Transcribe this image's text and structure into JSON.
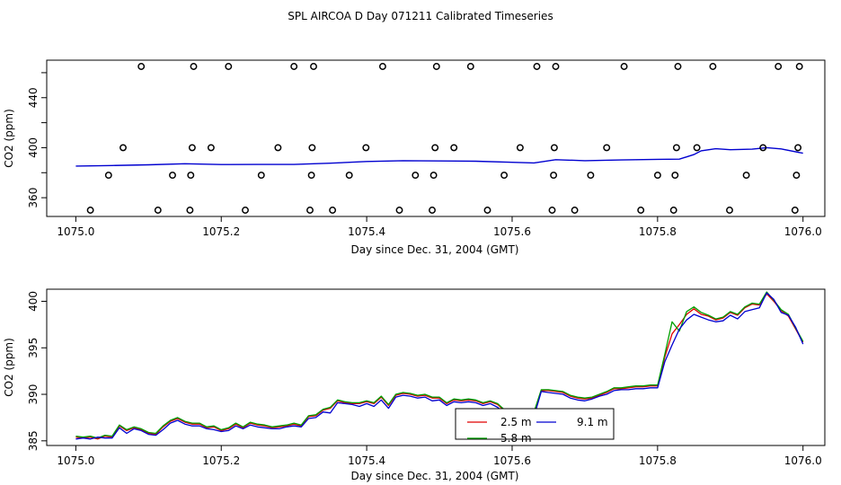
{
  "title": "SPL AIRCOA D  Day 071211  Calibrated Timeseries",
  "colors": {
    "frame": "#000000",
    "series_2_5m": "#e00000",
    "series_5_8m": "#00a000",
    "series_9_1m": "#0000d0",
    "markers": "#000000"
  },
  "chart_data": [
    {
      "type": "scatter",
      "title": "",
      "xlabel": "Day since Dec. 31, 2004 (GMT)",
      "ylabel": "CO2 (ppm)",
      "xlim": [
        1074.96,
        1076.03
      ],
      "ylim": [
        345,
        470
      ],
      "x_ticks": [
        "1075.0",
        "1075.2",
        "1075.4",
        "1075.6",
        "1075.8",
        "1076.0"
      ],
      "x_tick_values": [
        1075.0,
        1075.2,
        1075.4,
        1075.6,
        1075.8,
        1076.0
      ],
      "y_ticks": [
        "360",
        "400",
        "440"
      ],
      "y_tick_values": [
        360,
        400,
        440
      ],
      "y_minor_ticks": [
        380,
        420,
        460
      ],
      "grid": false,
      "series": [
        {
          "color": "#0000d0",
          "type": "line",
          "x": [
            1075.0,
            1075.05,
            1075.1,
            1075.15,
            1075.2,
            1075.25,
            1075.3,
            1075.35,
            1075.4,
            1075.45,
            1075.5,
            1075.55,
            1075.6,
            1075.63,
            1075.66,
            1075.7,
            1075.75,
            1075.8,
            1075.83,
            1075.85,
            1075.86,
            1075.88,
            1075.9,
            1075.93,
            1075.95,
            1075.97,
            1076.0
          ],
          "y": [
            385.3,
            385.7,
            386.3,
            387.2,
            386.5,
            386.6,
            386.6,
            387.6,
            389.0,
            389.6,
            389.4,
            389.2,
            388.3,
            387.8,
            390.4,
            389.6,
            390.2,
            390.7,
            390.8,
            394.5,
            397.5,
            399.2,
            398.4,
            398.8,
            400.0,
            399.0,
            395.6
          ]
        },
        {
          "type": "markers",
          "marker": "open-circle",
          "x": [
            1075.02,
            1075.045,
            1075.065,
            1075.09,
            1075.113,
            1075.133,
            1075.157,
            1075.158,
            1075.16,
            1075.162,
            1075.186,
            1075.21,
            1075.233,
            1075.255,
            1075.278,
            1075.3,
            1075.322,
            1075.324,
            1075.325,
            1075.327,
            1075.353,
            1075.376,
            1075.399,
            1075.422,
            1075.445,
            1075.467,
            1075.49,
            1075.492,
            1075.494,
            1075.496,
            1075.52,
            1075.543,
            1075.566,
            1075.589,
            1075.611,
            1075.634,
            1075.655,
            1075.657,
            1075.658,
            1075.66,
            1075.686,
            1075.708,
            1075.73,
            1075.754,
            1075.777,
            1075.8,
            1075.822,
            1075.824,
            1075.826,
            1075.828,
            1075.854,
            1075.876,
            1075.899,
            1075.922,
            1075.945,
            1075.966,
            1075.989,
            1075.991,
            1075.993,
            1075.995
          ],
          "y": [
            350,
            378,
            400,
            465,
            350,
            378,
            350,
            378,
            400,
            465,
            400,
            465,
            350,
            378,
            400,
            465,
            350,
            378,
            400,
            465,
            350,
            378,
            400,
            465,
            350,
            378,
            350,
            378,
            400,
            465,
            400,
            465,
            350,
            378,
            400,
            465,
            350,
            378,
            400,
            465,
            350,
            378,
            400,
            465,
            350,
            378,
            350,
            378,
            400,
            465,
            400,
            465,
            350,
            378,
            400,
            465,
            350,
            378,
            400,
            465
          ]
        }
      ]
    },
    {
      "type": "line",
      "title": "",
      "xlabel": "Day since Dec. 31, 2004 (GMT)",
      "ylabel": "CO2 (ppm)",
      "xlim": [
        1074.96,
        1076.03
      ],
      "ylim": [
        384.5,
        401.3
      ],
      "x_ticks": [
        "1075.0",
        "1075.2",
        "1075.4",
        "1075.6",
        "1075.8",
        "1076.0"
      ],
      "x_tick_values": [
        1075.0,
        1075.2,
        1075.4,
        1075.6,
        1075.8,
        1076.0
      ],
      "y_ticks": [
        "385",
        "390",
        "395",
        "400"
      ],
      "y_tick_values": [
        385,
        390,
        395,
        400
      ],
      "grid": false,
      "legend": {
        "placement": "bottom-center",
        "entries": [
          "2.5 m",
          "9.1 m",
          "5.8 m"
        ]
      },
      "x": [
        1075.0,
        1075.01,
        1075.02,
        1075.03,
        1075.04,
        1075.05,
        1075.06,
        1075.07,
        1075.08,
        1075.09,
        1075.1,
        1075.11,
        1075.12,
        1075.13,
        1075.14,
        1075.15,
        1075.16,
        1075.17,
        1075.18,
        1075.19,
        1075.2,
        1075.21,
        1075.22,
        1075.23,
        1075.24,
        1075.25,
        1075.26,
        1075.27,
        1075.28,
        1075.29,
        1075.3,
        1075.31,
        1075.32,
        1075.33,
        1075.34,
        1075.35,
        1075.36,
        1075.37,
        1075.38,
        1075.39,
        1075.4,
        1075.41,
        1075.42,
        1075.43,
        1075.44,
        1075.45,
        1075.46,
        1075.47,
        1075.48,
        1075.49,
        1075.5,
        1075.51,
        1075.52,
        1075.53,
        1075.54,
        1075.55,
        1075.56,
        1075.57,
        1075.58,
        1075.59,
        1075.6,
        1075.61,
        1075.62,
        1075.63,
        1075.64,
        1075.65,
        1075.66,
        1075.67,
        1075.68,
        1075.69,
        1075.7,
        1075.71,
        1075.72,
        1075.73,
        1075.74,
        1075.75,
        1075.76,
        1075.77,
        1075.78,
        1075.79,
        1075.8,
        1075.81,
        1075.82,
        1075.83,
        1075.84,
        1075.85,
        1075.86,
        1075.87,
        1075.88,
        1075.89,
        1075.9,
        1075.91,
        1075.92,
        1075.93,
        1075.94,
        1075.95,
        1075.96,
        1075.97,
        1075.98,
        1075.99,
        1076.0
      ],
      "series": [
        {
          "name": "2.5 m",
          "color": "#e00000",
          "values": [
            385.4,
            385.3,
            385.4,
            385.2,
            385.5,
            385.4,
            386.6,
            386.1,
            386.4,
            386.2,
            385.8,
            385.7,
            386.5,
            387.1,
            387.4,
            387.0,
            386.8,
            386.8,
            386.4,
            386.5,
            386.1,
            386.3,
            386.8,
            386.4,
            386.9,
            386.7,
            386.6,
            386.4,
            386.5,
            386.6,
            386.8,
            386.6,
            387.6,
            387.7,
            388.3,
            388.5,
            389.3,
            389.1,
            389.0,
            389.0,
            389.2,
            389.0,
            389.7,
            388.8,
            389.9,
            390.1,
            390.0,
            389.8,
            389.9,
            389.6,
            389.6,
            389.0,
            389.4,
            389.3,
            389.4,
            389.3,
            389.0,
            389.2,
            388.9,
            388.2,
            388.0,
            387.9,
            388.1,
            388.0,
            390.4,
            390.4,
            390.3,
            390.2,
            389.8,
            389.6,
            389.5,
            389.6,
            389.9,
            390.2,
            390.6,
            390.6,
            390.7,
            390.8,
            390.8,
            390.9,
            390.9,
            394.0,
            396.5,
            397.5,
            398.6,
            399.2,
            398.6,
            398.4,
            398.0,
            398.2,
            398.8,
            398.5,
            399.3,
            399.7,
            399.6,
            400.8,
            400.0,
            399.0,
            398.4,
            397.0,
            395.6
          ]
        },
        {
          "name": "9.1 m",
          "color": "#0000d0",
          "values": [
            385.2,
            385.3,
            385.2,
            385.4,
            385.3,
            385.3,
            386.4,
            385.8,
            386.3,
            386.1,
            385.7,
            385.6,
            386.2,
            386.9,
            387.2,
            386.8,
            386.6,
            386.6,
            386.3,
            386.2,
            386.0,
            386.1,
            386.6,
            386.3,
            386.7,
            386.5,
            386.4,
            386.3,
            386.3,
            386.5,
            386.6,
            386.5,
            387.4,
            387.5,
            388.1,
            388.0,
            389.1,
            389.0,
            388.9,
            388.7,
            389.0,
            388.7,
            389.4,
            388.5,
            389.7,
            389.9,
            389.8,
            389.6,
            389.7,
            389.3,
            389.4,
            388.8,
            389.2,
            389.1,
            389.2,
            389.1,
            388.8,
            389.0,
            388.6,
            388.0,
            387.8,
            387.7,
            387.9,
            387.6,
            390.3,
            390.2,
            390.1,
            390.0,
            389.6,
            389.4,
            389.3,
            389.5,
            389.8,
            390.0,
            390.4,
            390.5,
            390.5,
            390.6,
            390.6,
            390.7,
            390.7,
            393.5,
            395.3,
            397.0,
            398.0,
            398.6,
            398.3,
            398.0,
            397.8,
            397.9,
            398.5,
            398.1,
            398.9,
            399.1,
            399.3,
            400.9,
            400.2,
            398.8,
            398.5,
            397.2,
            395.4
          ]
        },
        {
          "name": "5.8 m",
          "color": "#00a000",
          "values": [
            385.5,
            385.4,
            385.5,
            385.3,
            385.6,
            385.5,
            386.7,
            386.2,
            386.5,
            386.3,
            385.9,
            385.8,
            386.6,
            387.2,
            387.5,
            387.1,
            386.9,
            386.9,
            386.5,
            386.6,
            386.2,
            386.4,
            386.9,
            386.5,
            387.0,
            386.8,
            386.7,
            386.5,
            386.6,
            386.7,
            386.9,
            386.7,
            387.7,
            387.8,
            388.4,
            388.6,
            389.4,
            389.2,
            389.1,
            389.1,
            389.3,
            389.1,
            389.8,
            388.9,
            390.0,
            390.2,
            390.1,
            389.9,
            390.0,
            389.7,
            389.7,
            389.1,
            389.5,
            389.4,
            389.5,
            389.4,
            389.1,
            389.3,
            389.0,
            388.3,
            388.1,
            388.0,
            388.2,
            388.1,
            390.5,
            390.5,
            390.4,
            390.3,
            389.9,
            389.7,
            389.6,
            389.7,
            390.0,
            390.3,
            390.7,
            390.7,
            390.8,
            390.9,
            390.9,
            391.0,
            391.0,
            394.3,
            397.8,
            396.8,
            398.9,
            399.4,
            398.8,
            398.5,
            398.1,
            398.3,
            398.9,
            398.6,
            399.4,
            399.8,
            399.7,
            401.0,
            400.1,
            399.1,
            398.6,
            397.1,
            395.7
          ]
        }
      ]
    }
  ]
}
